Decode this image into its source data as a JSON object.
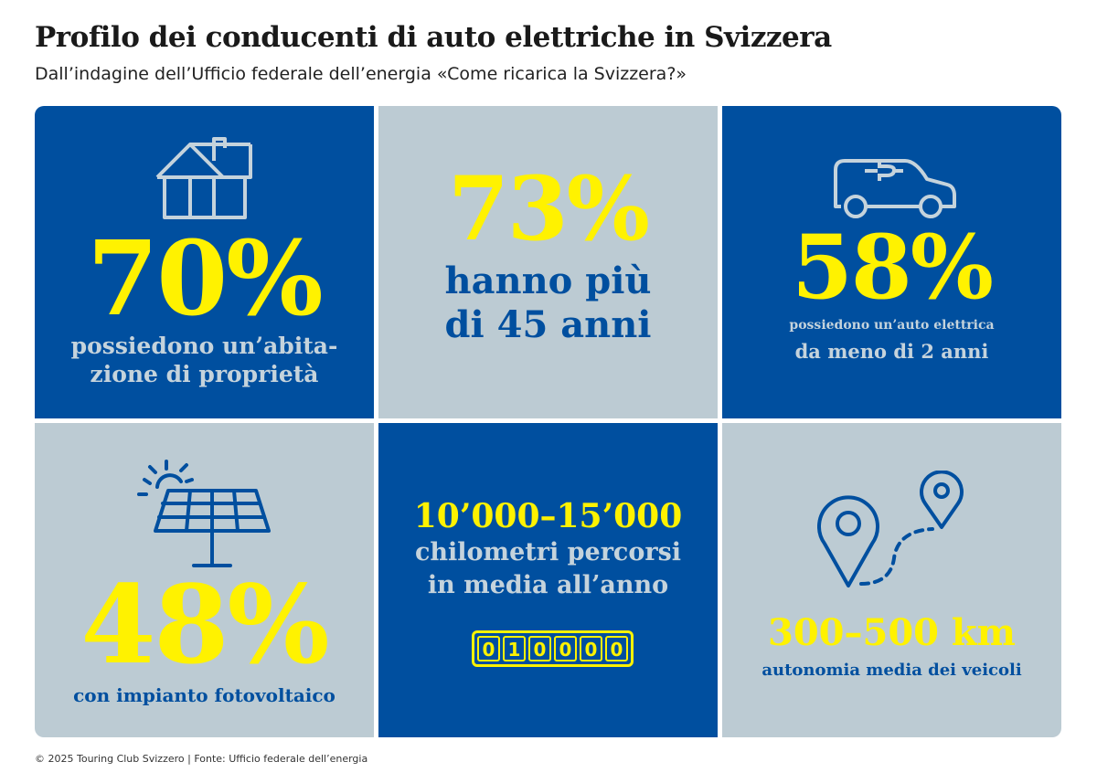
{
  "header": {
    "title": "Profilo dei conducenti di auto elettriche in Svizzera",
    "subtitle": "Dall’indagine dell’Ufficio federale dell’energia «Come ricarica la Svizzera?»"
  },
  "tiles": [
    {
      "value": "70%",
      "line1": "possiedono un’abita-",
      "line2": "zione di proprietà",
      "icon": "house-icon"
    },
    {
      "value": "73%",
      "line1": "hanno più",
      "line2": "di 45 anni"
    },
    {
      "value": "58%",
      "line1": "possiedono un’auto elettrica",
      "line2": "da meno di 2 anni",
      "icon": "electric-car-icon"
    },
    {
      "value": "48%",
      "line1": "con impianto fotovoltaico",
      "icon": "solar-panel-icon"
    },
    {
      "value": "10’000–15’000",
      "line1": "chilometri percorsi",
      "line2": "in media all’anno",
      "icon": "odometer-icon",
      "odometer": [
        "0",
        "1",
        "0",
        "0",
        "0",
        "0"
      ]
    },
    {
      "value": "300–500 km",
      "line1": "autonomia media dei veicoli",
      "icon": "route-pins-icon"
    }
  ],
  "colors": {
    "blue": "#004f9f",
    "gray": "#bccbd3",
    "yellow": "#fff200"
  },
  "footer": {
    "text": "© 2025 Touring Club Svizzero | Fonte: Ufficio federale dell’energia"
  }
}
